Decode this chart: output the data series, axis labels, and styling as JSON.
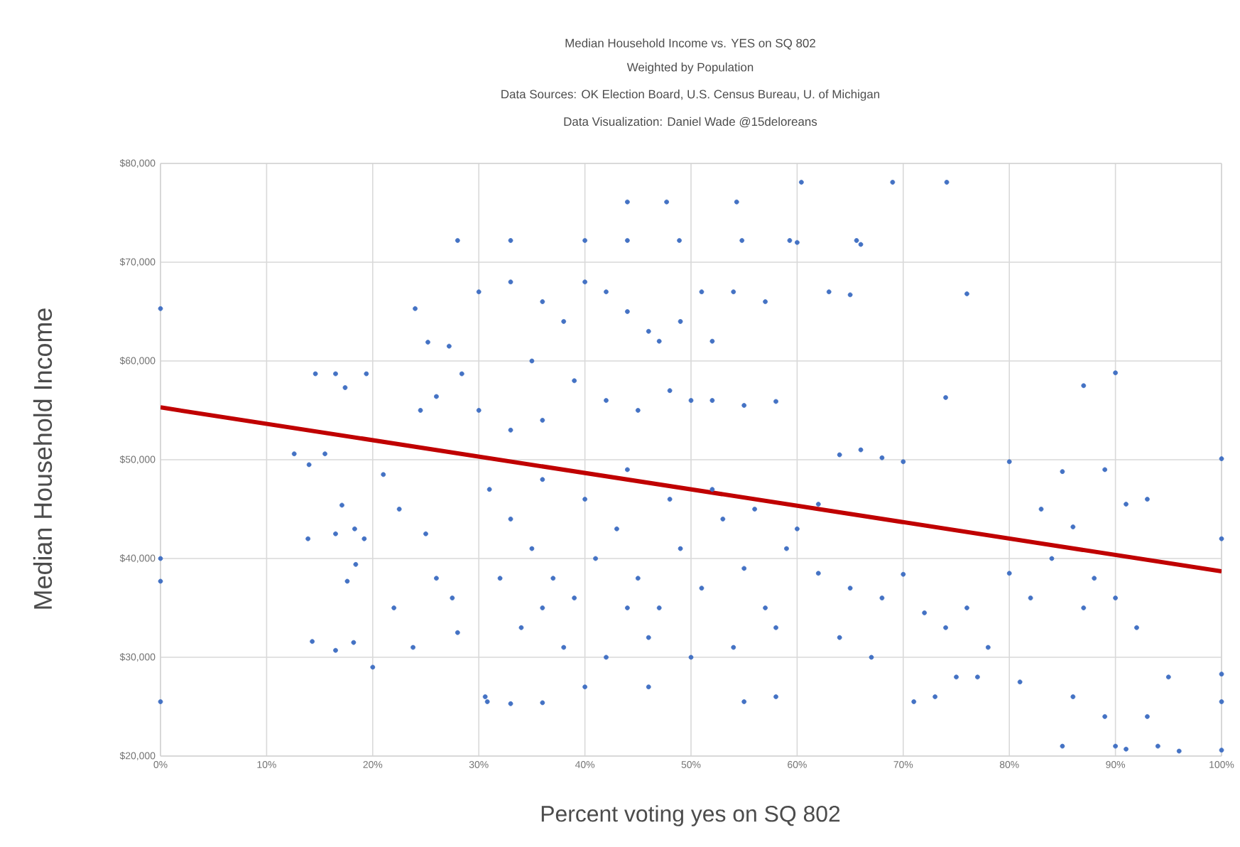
{
  "chart_data": {
    "type": "scatter",
    "title": "Median Household Income vs. YES on SQ 802",
    "subtitle": "Weighted by Population",
    "annotations": [
      "Data Sources: OK Election Board, U.S. Census Bureau, U. of Michigan",
      "Data Visualization: Daniel Wade   @15deloreans"
    ],
    "xlabel": "Percent voting yes on SQ 802",
    "ylabel": "Median Household Income",
    "xlim": [
      0,
      100
    ],
    "ylim": [
      20000,
      80000
    ],
    "xticks": [
      {
        "value": 0,
        "label": "0%"
      },
      {
        "value": 10,
        "label": "10%"
      },
      {
        "value": 20,
        "label": "20%"
      },
      {
        "value": 30,
        "label": "30%"
      },
      {
        "value": 40,
        "label": "40%"
      },
      {
        "value": 50,
        "label": "50%"
      },
      {
        "value": 60,
        "label": "60%"
      },
      {
        "value": 70,
        "label": "70%"
      },
      {
        "value": 80,
        "label": "80%"
      },
      {
        "value": 90,
        "label": "90%"
      },
      {
        "value": 100,
        "label": "100%"
      }
    ],
    "yticks": [
      {
        "value": 20000,
        "label": "$20,000"
      },
      {
        "value": 30000,
        "label": "$30,000"
      },
      {
        "value": 40000,
        "label": "$40,000"
      },
      {
        "value": 50000,
        "label": "$50,000"
      },
      {
        "value": 60000,
        "label": "$60,000"
      },
      {
        "value": 70000,
        "label": "$70,000"
      },
      {
        "value": 80000,
        "label": "$80,000"
      }
    ],
    "grid": true,
    "series": [
      {
        "marker": "circle",
        "color": "#4472c4",
        "x": [
          0,
          0,
          0,
          0,
          14.6,
          16.5,
          19.4,
          17.4,
          12.6,
          15.5,
          14,
          17.1,
          13.9,
          16.5,
          18.3,
          19.2,
          18.4,
          17.6,
          14.3,
          16.5,
          18.2,
          20,
          22,
          23.8,
          24,
          25.2,
          24.5,
          26,
          27.2,
          28.4,
          21,
          22.5,
          25,
          26,
          27.5,
          28,
          30.6,
          30.8,
          33,
          36,
          60.4,
          69,
          74.1,
          44,
          47.7,
          54.3,
          28,
          33,
          40,
          44,
          48.9,
          54.8,
          59.3,
          65.6,
          30,
          33,
          36,
          38,
          40,
          42,
          44,
          46,
          35,
          39,
          42,
          45,
          48,
          50,
          52,
          55,
          58,
          51,
          54,
          57,
          49,
          30,
          33,
          36,
          47,
          52,
          60,
          63,
          65,
          66,
          76,
          74,
          87,
          90,
          31,
          33,
          35,
          37,
          39,
          41,
          43,
          45,
          47,
          49,
          51,
          53,
          55,
          57,
          59,
          34,
          38,
          42,
          46,
          50,
          54,
          58,
          36,
          40,
          44,
          48,
          52,
          56,
          60,
          32,
          36,
          44,
          40,
          46,
          55,
          58,
          62,
          64,
          66,
          68,
          70,
          62,
          65,
          68,
          64,
          67,
          70,
          72,
          74,
          76,
          78,
          73,
          77,
          80,
          82,
          84,
          86,
          88,
          80,
          85,
          89,
          83,
          87,
          90,
          92,
          91,
          93,
          85,
          90,
          91,
          94,
          96,
          100,
          100,
          100,
          100,
          100,
          95,
          93,
          89,
          86,
          81,
          75,
          71
        ],
        "values": [
          65300,
          40000,
          37700,
          25500,
          58700,
          58700,
          58700,
          57300,
          50600,
          50600,
          49500,
          45400,
          42000,
          42500,
          43000,
          42000,
          39400,
          37700,
          31600,
          30700,
          31500,
          29000,
          35000,
          31000,
          65300,
          61900,
          55000,
          56400,
          61500,
          58700,
          48500,
          45000,
          42500,
          38000,
          36000,
          32500,
          26000,
          25500,
          25300,
          25400,
          78100,
          78100,
          78100,
          76100,
          76100,
          76100,
          72200,
          72200,
          72200,
          72200,
          72200,
          72200,
          72200,
          72200,
          67000,
          68000,
          66000,
          64000,
          68000,
          67000,
          65000,
          63000,
          60000,
          58000,
          56000,
          55000,
          57000,
          56000,
          56000,
          55500,
          55900,
          67000,
          67000,
          66000,
          64000,
          55000,
          53000,
          54000,
          62000,
          62000,
          72000,
          67000,
          66700,
          71800,
          66800,
          56300,
          57500,
          58800,
          47000,
          44000,
          41000,
          38000,
          36000,
          40000,
          43000,
          38000,
          35000,
          41000,
          37000,
          44000,
          39000,
          35000,
          41000,
          33000,
          31000,
          30000,
          32000,
          30000,
          31000,
          33000,
          48000,
          46000,
          49000,
          46000,
          47000,
          45000,
          43000,
          38000,
          35000,
          35000,
          27000,
          27000,
          25500,
          26000,
          45500,
          50500,
          51000,
          50200,
          49800,
          38500,
          37000,
          36000,
          32000,
          30000,
          38400,
          34500,
          33000,
          35000,
          31000,
          26000,
          28000,
          38500,
          36000,
          40000,
          43200,
          38000,
          49800,
          48800,
          49000,
          45000,
          35000,
          36000,
          33000,
          45500,
          46000,
          21000,
          21000,
          20700,
          21000,
          20500,
          20600,
          25500,
          28300,
          42000,
          50100,
          28000,
          24000,
          24000,
          26000,
          27500,
          28000,
          25500
        ]
      },
      {
        "type": "line",
        "marker": "none",
        "color": "#c00000",
        "x": [
          0,
          100
        ],
        "values": [
          55300,
          38700
        ]
      }
    ]
  }
}
